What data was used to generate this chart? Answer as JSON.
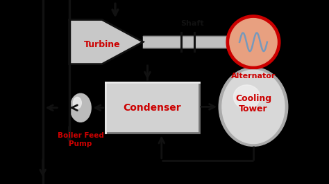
{
  "bg_color": "#FFFE88",
  "black_bg": "#000000",
  "red": "#CC0000",
  "dark": "#111111",
  "gray_light": "#D8D8D8",
  "gray_med": "#AAAAAA",
  "gray_dark": "#666666",
  "shaft_color": "#C0C0C0",
  "alt_fill": "#E8A080",
  "sine_color": "#7799BB",
  "turbine_label": "Turbine",
  "shaft_label": "Shaft",
  "alternator_label": "Alternator",
  "boiler_feed_label": "Boiler Feed\nPump",
  "cooling_tower_label": "Cooling\nTower",
  "condenser_label": "Condenser",
  "xlim": [
    0,
    10
  ],
  "ylim": [
    0,
    5.6
  ]
}
